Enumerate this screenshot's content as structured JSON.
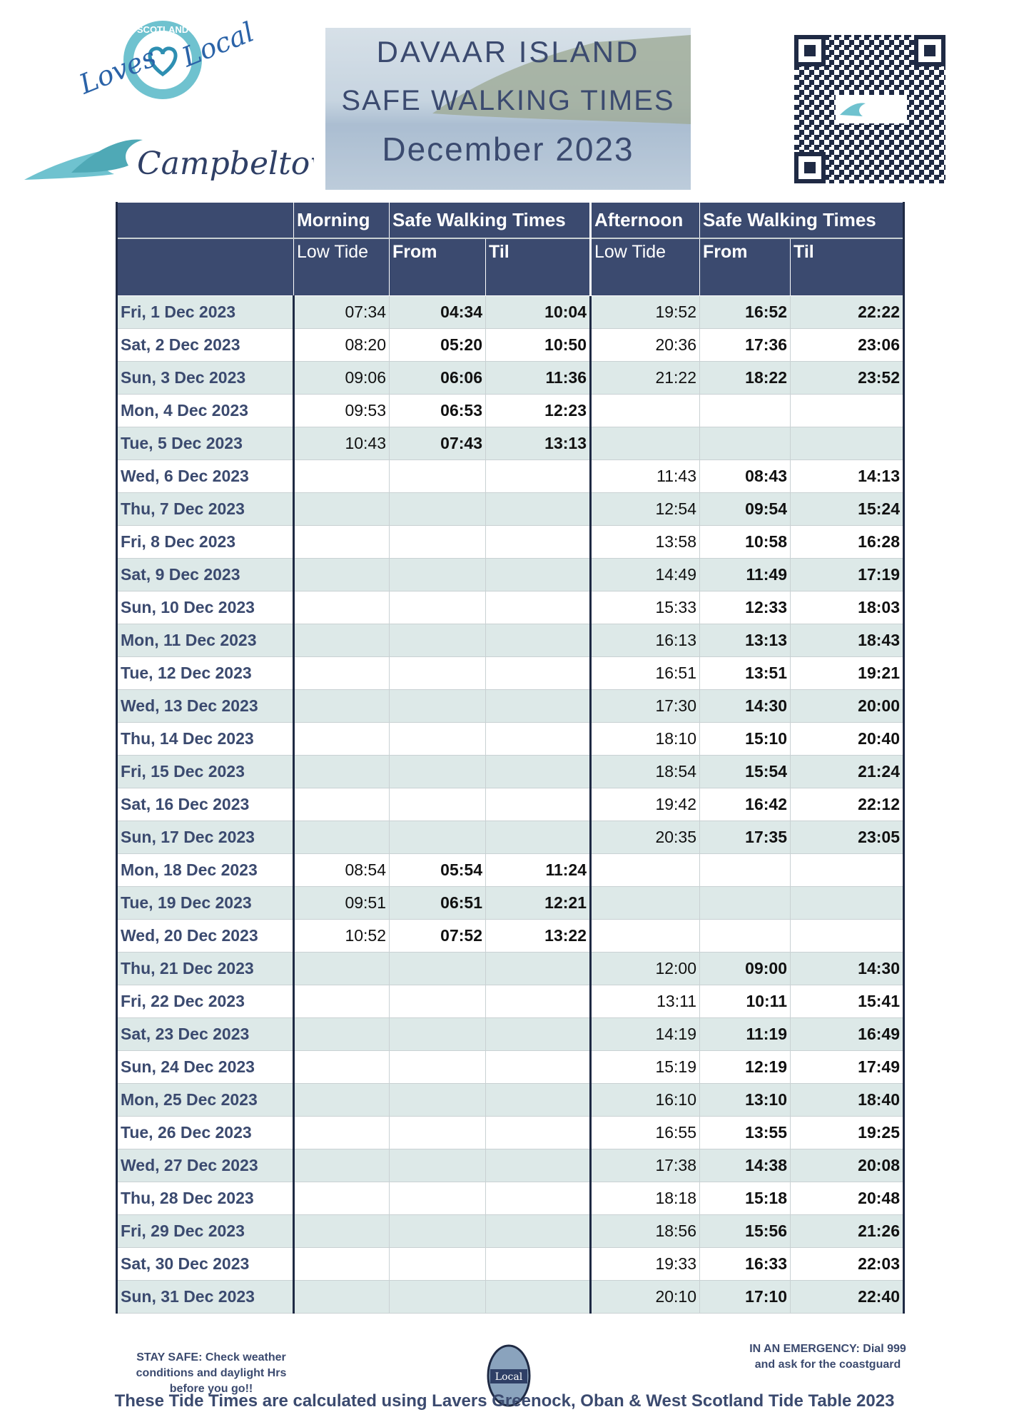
{
  "header": {
    "logo_top": {
      "badge": "SCOTLAND",
      "left": "Loves",
      "right": "Local"
    },
    "logo_bottom": "Campbeltown",
    "title_lines": [
      "DAVAAR ISLAND",
      "SAFE WALKING TIMES",
      "December 2023"
    ]
  },
  "table": {
    "header_row_1": [
      "Morning",
      "Safe Walking Times",
      "Afternoon",
      "Safe Walking Times"
    ],
    "header_row_2": [
      "Low Tide",
      "From",
      "Til",
      "Low Tide",
      "From",
      "Til"
    ],
    "rows": [
      [
        "Fri, 1 Dec 2023",
        "07:34",
        "04:34",
        "10:04",
        "19:52",
        "16:52",
        "22:22"
      ],
      [
        "Sat, 2 Dec 2023",
        "08:20",
        "05:20",
        "10:50",
        "20:36",
        "17:36",
        "23:06"
      ],
      [
        "Sun, 3 Dec 2023",
        "09:06",
        "06:06",
        "11:36",
        "21:22",
        "18:22",
        "23:52"
      ],
      [
        "Mon, 4 Dec 2023",
        "09:53",
        "06:53",
        "12:23",
        null,
        null,
        null
      ],
      [
        "Tue, 5 Dec 2023",
        "10:43",
        "07:43",
        "13:13",
        null,
        null,
        null
      ],
      [
        "Wed, 6 Dec 2023",
        null,
        null,
        null,
        "11:43",
        "08:43",
        "14:13"
      ],
      [
        "Thu, 7 Dec 2023",
        null,
        null,
        null,
        "12:54",
        "09:54",
        "15:24"
      ],
      [
        "Fri, 8 Dec 2023",
        null,
        null,
        null,
        "13:58",
        "10:58",
        "16:28"
      ],
      [
        "Sat, 9 Dec 2023",
        null,
        null,
        null,
        "14:49",
        "11:49",
        "17:19"
      ],
      [
        "Sun, 10 Dec 2023",
        null,
        null,
        null,
        "15:33",
        "12:33",
        "18:03"
      ],
      [
        "Mon, 11 Dec 2023",
        null,
        null,
        null,
        "16:13",
        "13:13",
        "18:43"
      ],
      [
        "Tue, 12 Dec 2023",
        null,
        null,
        null,
        "16:51",
        "13:51",
        "19:21"
      ],
      [
        "Wed, 13 Dec 2023",
        null,
        null,
        null,
        "17:30",
        "14:30",
        "20:00"
      ],
      [
        "Thu, 14 Dec 2023",
        null,
        null,
        null,
        "18:10",
        "15:10",
        "20:40"
      ],
      [
        "Fri, 15 Dec 2023",
        null,
        null,
        null,
        "18:54",
        "15:54",
        "21:24"
      ],
      [
        "Sat, 16 Dec 2023",
        null,
        null,
        null,
        "19:42",
        "16:42",
        "22:12"
      ],
      [
        "Sun, 17 Dec 2023",
        null,
        null,
        null,
        "20:35",
        "17:35",
        "23:05"
      ],
      [
        "Mon, 18 Dec 2023",
        "08:54",
        "05:54",
        "11:24",
        null,
        null,
        null
      ],
      [
        "Tue, 19 Dec 2023",
        "09:51",
        "06:51",
        "12:21",
        null,
        null,
        null
      ],
      [
        "Wed, 20 Dec 2023",
        "10:52",
        "07:52",
        "13:22",
        null,
        null,
        null
      ],
      [
        "Thu, 21 Dec 2023",
        null,
        null,
        null,
        "12:00",
        "09:00",
        "14:30"
      ],
      [
        "Fri, 22 Dec 2023",
        null,
        null,
        null,
        "13:11",
        "10:11",
        "15:41"
      ],
      [
        "Sat, 23 Dec 2023",
        null,
        null,
        null,
        "14:19",
        "11:19",
        "16:49"
      ],
      [
        "Sun, 24 Dec 2023",
        null,
        null,
        null,
        "15:19",
        "12:19",
        "17:49"
      ],
      [
        "Mon, 25 Dec 2023",
        null,
        null,
        null,
        "16:10",
        "13:10",
        "18:40"
      ],
      [
        "Tue, 26 Dec 2023",
        null,
        null,
        null,
        "16:55",
        "13:55",
        "19:25"
      ],
      [
        "Wed, 27 Dec 2023",
        null,
        null,
        null,
        "17:38",
        "14:38",
        "20:08"
      ],
      [
        "Thu, 28 Dec 2023",
        null,
        null,
        null,
        "18:18",
        "15:18",
        "20:48"
      ],
      [
        "Fri, 29 Dec 2023",
        null,
        null,
        null,
        "18:56",
        "15:56",
        "21:26"
      ],
      [
        "Sat, 30 Dec 2023",
        null,
        null,
        null,
        "19:33",
        "16:33",
        "22:03"
      ],
      [
        "Sun, 31 Dec 2023",
        null,
        null,
        null,
        "20:10",
        "17:10",
        "22:40"
      ]
    ]
  },
  "footer": {
    "left": "STAY SAFE: Check weather conditions and daylight Hrs before you go!!",
    "right": "IN AN EMERGENCY: Dial 999 and ask for the coastguard",
    "center_logo": "Local",
    "note": "These Tide Times are calculated using Lavers Greenock, Oban & West Scotland Tide Table 2023"
  }
}
